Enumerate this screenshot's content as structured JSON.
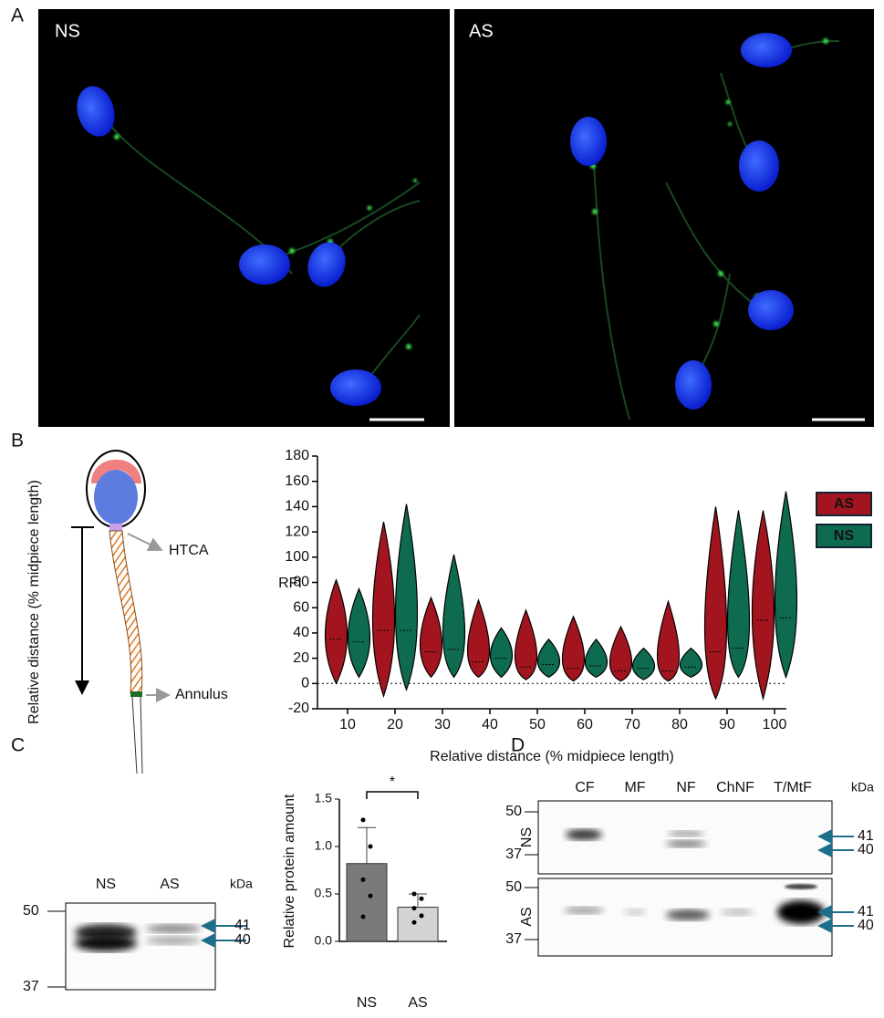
{
  "panel_labels": [
    "A",
    "B",
    "C",
    "D"
  ],
  "panel_a": {
    "left_label": "NS",
    "right_label": "AS"
  },
  "panel_b_diagram": {
    "axis_label": "Relative distance (% midpiece length)",
    "htca": "HTCA",
    "annulus": "Annulus"
  },
  "blot_c": {
    "lanes": [
      "NS",
      "AS"
    ],
    "unit": "kDa",
    "markers": [
      "50",
      "37"
    ],
    "bands": [
      "41",
      "40"
    ]
  },
  "blot_d": {
    "lanes": [
      "CF",
      "MF",
      "NF",
      "ChNF",
      "T/MtF"
    ],
    "unit": "kDa",
    "rows": [
      "NS",
      "AS"
    ],
    "markers": [
      "50",
      "37"
    ],
    "bands": [
      "41",
      "40"
    ]
  },
  "chart_data": [
    {
      "type": "violin",
      "y_label": "RFI",
      "x_label": "Relative distance (% midpiece length)",
      "categories": [
        10,
        20,
        30,
        40,
        50,
        60,
        70,
        80,
        90,
        100
      ],
      "ylim": [
        -20,
        180
      ],
      "yticks": [
        -20,
        0,
        20,
        40,
        60,
        80,
        100,
        120,
        140,
        160,
        180
      ],
      "hline": 0,
      "series": [
        {
          "name": "AS",
          "color": "#a3151e",
          "min": [
            0,
            -10,
            5,
            5,
            3,
            2,
            2,
            2,
            -12,
            -12
          ],
          "median": [
            35,
            42,
            25,
            17,
            13,
            12,
            10,
            10,
            25,
            50
          ],
          "max": [
            82,
            128,
            68,
            66,
            58,
            53,
            45,
            65,
            140,
            137
          ]
        },
        {
          "name": "NS",
          "color": "#0f6b50",
          "min": [
            5,
            -5,
            5,
            5,
            5,
            5,
            3,
            5,
            5,
            5
          ],
          "median": [
            33,
            42,
            27,
            20,
            15,
            14,
            12,
            13,
            28,
            52
          ],
          "max": [
            75,
            142,
            102,
            44,
            35,
            35,
            28,
            28,
            137,
            152
          ]
        }
      ]
    },
    {
      "type": "bar",
      "y_label": "Relative protein amount",
      "categories": [
        "NS",
        "AS"
      ],
      "values": [
        0.82,
        0.36
      ],
      "errors": [
        0.38,
        0.14
      ],
      "colors": [
        "#7a7a7a",
        "#d3d3d3"
      ],
      "points": [
        [
          1.28,
          1.0,
          0.65,
          0.48,
          0.26
        ],
        [
          0.5,
          0.45,
          0.35,
          0.27,
          0.2
        ]
      ],
      "ylim": [
        0,
        1.5
      ],
      "yticks": [
        {
          "value": 0,
          "label": "0.0"
        },
        {
          "value": 0.5,
          "label": "0.5"
        },
        {
          "value": 1,
          "label": "1.0"
        },
        {
          "value": 1.5,
          "label": "1.5"
        }
      ],
      "annotation": "*"
    }
  ]
}
